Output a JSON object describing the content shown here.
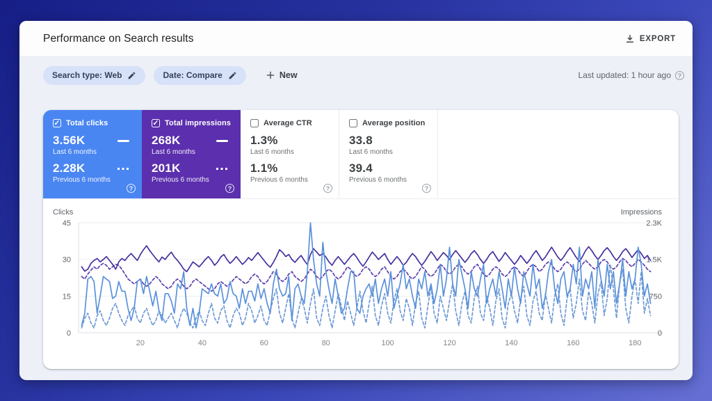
{
  "header": {
    "title": "Performance on Search results",
    "export_label": "EXPORT"
  },
  "filters": {
    "chips": [
      {
        "label": "Search type: Web"
      },
      {
        "label": "Date: Compare"
      }
    ],
    "new_label": "New",
    "last_updated": "Last updated: 1 hour ago"
  },
  "icons": {
    "export": "download-icon",
    "chip_edit": "pencil-icon",
    "new": "plus-icon",
    "help": "question-circle-icon",
    "checkbox_checked": "checkbox-checked-icon",
    "checkbox_unchecked": "checkbox-unchecked-icon"
  },
  "colors": {
    "clicks_accent": "#4a86f2",
    "impressions_accent": "#5b2fad",
    "clicks_line": "#5a91da",
    "clicks_prev_line": "#6e9ad6",
    "impressions_line": "#472f9e",
    "impressions_prev_line": "#5d3fae"
  },
  "metric_cards": [
    {
      "label": "Total clicks",
      "checked": true,
      "bg": "#4a86f2",
      "current": {
        "value": "3.56K",
        "period": "Last 6 months"
      },
      "previous": {
        "value": "2.28K",
        "period": "Previous 6 months"
      }
    },
    {
      "label": "Total impressions",
      "checked": true,
      "bg": "#5b2fad",
      "current": {
        "value": "268K",
        "period": "Last 6 months"
      },
      "previous": {
        "value": "201K",
        "period": "Previous 6 months"
      }
    },
    {
      "label": "Average CTR",
      "checked": false,
      "bg": null,
      "current": {
        "value": "1.3%",
        "period": "Last 6 months"
      },
      "previous": {
        "value": "1.1%",
        "period": "Previous 6 months"
      }
    },
    {
      "label": "Average position",
      "checked": false,
      "bg": null,
      "current": {
        "value": "33.8",
        "period": "Last 6 months"
      },
      "previous": {
        "value": "39.4",
        "period": "Previous 6 months"
      }
    }
  ],
  "chart_data": {
    "type": "line",
    "x": {
      "max": 186,
      "ticks": [
        20,
        40,
        60,
        80,
        100,
        120,
        140,
        160,
        180
      ]
    },
    "left_axis": {
      "label": "Clicks",
      "max": 45,
      "ticks": [
        {
          "v": 0,
          "t": "0"
        },
        {
          "v": 15,
          "t": "15"
        },
        {
          "v": 30,
          "t": "30"
        },
        {
          "v": 45,
          "t": "45"
        }
      ]
    },
    "right_axis": {
      "label": "Impressions",
      "max": 2250,
      "ticks": [
        {
          "v": 0,
          "t": "0"
        },
        {
          "v": 750,
          "t": "750"
        },
        {
          "v": 1500,
          "t": "1.5K"
        },
        {
          "v": 2250,
          "t": "2.3K"
        }
      ]
    },
    "legend_position": "none",
    "grid": true,
    "series": [
      {
        "name": "Clicks - Last 6 months",
        "axis": "left",
        "style": "solid",
        "color": "#5a91da",
        "values": [
          3,
          8,
          22,
          23,
          21,
          8,
          15,
          23,
          22,
          21,
          14,
          15,
          21,
          17,
          17,
          10,
          5,
          10,
          21,
          22,
          16,
          23,
          17,
          11,
          17,
          9,
          5,
          16,
          16,
          13,
          8,
          20,
          18,
          25,
          10,
          3,
          10,
          2,
          8,
          18,
          17,
          16,
          20,
          16,
          15,
          20,
          12,
          14,
          21,
          16,
          15,
          10,
          18,
          12,
          17,
          17,
          13,
          20,
          14,
          18,
          12,
          8,
          20,
          26,
          18,
          15,
          16,
          23,
          5,
          18,
          20,
          15,
          12,
          25,
          45,
          30,
          20,
          15,
          37,
          25,
          18,
          12,
          22,
          15,
          8,
          10,
          18,
          25,
          25,
          10,
          8,
          15,
          18,
          20,
          15,
          22,
          12,
          18,
          22,
          15,
          25,
          10,
          15,
          20,
          28,
          18,
          22,
          15,
          10,
          22,
          18,
          25,
          15,
          20,
          12,
          18,
          28,
          15,
          22,
          35,
          20,
          15,
          30,
          24,
          18,
          10,
          25,
          18,
          15,
          22,
          28,
          12,
          18,
          22,
          15,
          25,
          18,
          10,
          22,
          15,
          27,
          18,
          12,
          25,
          20,
          15,
          28,
          18,
          22,
          10,
          15,
          25,
          30,
          18,
          12,
          22,
          25,
          15,
          18,
          28,
          20,
          35,
          15,
          22,
          18,
          25,
          10,
          30,
          22,
          15,
          28,
          18,
          25,
          12,
          20,
          30,
          15,
          25,
          18,
          22,
          35,
          28,
          15,
          20,
          12
        ]
      },
      {
        "name": "Clicks - Previous 6 months",
        "axis": "left",
        "style": "dashed",
        "color": "#6e9ad6",
        "values": [
          2,
          6,
          8,
          4,
          2,
          7,
          9,
          5,
          3,
          6,
          10,
          12,
          8,
          5,
          3,
          7,
          9,
          11,
          6,
          4,
          8,
          10,
          6,
          3,
          5,
          9,
          7,
          4,
          6,
          8,
          5,
          2,
          7,
          10,
          8,
          4,
          2,
          6,
          9,
          5,
          3,
          8,
          12,
          6,
          4,
          9,
          11,
          5,
          2,
          7,
          10,
          8,
          3,
          6,
          12,
          9,
          4,
          7,
          11,
          5,
          3,
          9,
          14,
          18,
          8,
          4,
          10,
          16,
          6,
          2,
          8,
          14,
          10,
          4,
          12,
          18,
          6,
          3,
          10,
          15,
          7,
          2,
          9,
          16,
          11,
          5,
          13,
          8,
          3,
          10,
          17,
          9,
          4,
          12,
          19,
          7,
          3,
          11,
          16,
          8,
          4,
          13,
          18,
          9,
          5,
          14,
          10,
          3,
          12,
          17,
          6,
          2,
          11,
          19,
          8,
          4,
          15,
          10,
          5,
          13,
          20,
          9,
          3,
          12,
          17,
          7,
          4,
          14,
          19,
          8,
          5,
          15,
          10,
          3,
          13,
          18,
          6,
          2,
          12,
          16,
          9,
          4,
          14,
          19,
          7,
          3,
          13,
          17,
          8,
          5,
          16,
          10,
          4,
          15,
          20,
          8,
          3,
          14,
          18,
          6,
          12,
          22,
          9,
          5,
          17,
          12,
          4,
          16,
          21,
          7,
          14,
          28,
          18,
          6,
          20,
          26,
          10,
          4,
          15,
          22,
          12,
          25,
          8,
          14,
          7
        ]
      },
      {
        "name": "Impressions - Last 6 months",
        "axis": "right",
        "style": "solid",
        "color": "#472f9e",
        "values": [
          1350,
          1260,
          1300,
          1420,
          1480,
          1520,
          1450,
          1500,
          1560,
          1480,
          1400,
          1300,
          1450,
          1520,
          1480,
          1560,
          1620,
          1550,
          1480,
          1600,
          1700,
          1780,
          1680,
          1600,
          1520,
          1450,
          1550,
          1500,
          1580,
          1650,
          1550,
          1480,
          1400,
          1300,
          1250,
          1350,
          1450,
          1400,
          1350,
          1420,
          1500,
          1560,
          1480,
          1380,
          1450,
          1550,
          1600,
          1500,
          1420,
          1480,
          1560,
          1480,
          1400,
          1460,
          1540,
          1480,
          1560,
          1640,
          1560,
          1480,
          1400,
          1340,
          1440,
          1560,
          1700,
          1640,
          1560,
          1600,
          1500,
          1440,
          1520,
          1580,
          1480,
          1400,
          1600,
          1720,
          1650,
          1580,
          1620,
          1550,
          1450,
          1380,
          1480,
          1560,
          1480,
          1400,
          1480,
          1560,
          1620,
          1540,
          1440,
          1360,
          1450,
          1550,
          1650,
          1580,
          1500,
          1560,
          1620,
          1500,
          1400,
          1480,
          1560,
          1480,
          1380,
          1440,
          1540,
          1620,
          1560,
          1460,
          1380,
          1460,
          1560,
          1660,
          1580,
          1480,
          1560,
          1640,
          1580,
          1500,
          1600,
          1680,
          1600,
          1520,
          1440,
          1520,
          1620,
          1680,
          1600,
          1500,
          1420,
          1500,
          1600,
          1660,
          1560,
          1460,
          1540,
          1640,
          1560,
          1480,
          1400,
          1480,
          1580,
          1500,
          1420,
          1500,
          1600,
          1680,
          1580,
          1480,
          1550,
          1650,
          1750,
          1650,
          1550,
          1480,
          1560,
          1660,
          1740,
          1640,
          1540,
          1460,
          1560,
          1680,
          1760,
          1680,
          1580,
          1500,
          1580,
          1680,
          1740,
          1660,
          1560,
          1480,
          1560,
          1660,
          1720,
          1640,
          1540,
          1620,
          1700,
          1620,
          1520,
          1580,
          1480
        ]
      },
      {
        "name": "Impressions - Previous 6 months",
        "axis": "right",
        "style": "dashed",
        "color": "#5d3fae",
        "values": [
          1150,
          1100,
          1200,
          1280,
          1350,
          1300,
          1380,
          1420,
          1380,
          1300,
          1350,
          1400,
          1380,
          1300,
          1200,
          1100,
          1050,
          1000,
          1050,
          1100,
          1000,
          950,
          1000,
          1080,
          1150,
          1100,
          1000,
          950,
          900,
          950,
          1050,
          1100,
          1050,
          950,
          900,
          950,
          1050,
          1100,
          1050,
          1000,
          950,
          900,
          850,
          900,
          1000,
          1050,
          1000,
          950,
          1000,
          1080,
          1150,
          1100,
          1050,
          1000,
          1050,
          1150,
          1200,
          1150,
          1050,
          1000,
          1050,
          1150,
          1250,
          1200,
          1100,
          1050,
          1100,
          1200,
          1250,
          1150,
          1100,
          1050,
          1100,
          1200,
          1300,
          1250,
          1150,
          1100,
          1150,
          1250,
          1300,
          1250,
          1150,
          1100,
          1150,
          1250,
          1350,
          1300,
          1200,
          1150,
          1200,
          1300,
          1350,
          1300,
          1200,
          1150,
          1200,
          1300,
          1350,
          1250,
          1150,
          1100,
          1150,
          1250,
          1300,
          1250,
          1150,
          1100,
          1150,
          1250,
          1350,
          1300,
          1200,
          1150,
          1200,
          1300,
          1400,
          1350,
          1250,
          1200,
          1250,
          1350,
          1400,
          1350,
          1250,
          1200,
          1250,
          1350,
          1400,
          1300,
          1200,
          1150,
          1200,
          1300,
          1350,
          1300,
          1200,
          1150,
          1200,
          1300,
          1350,
          1300,
          1200,
          1150,
          1250,
          1350,
          1400,
          1350,
          1250,
          1300,
          1400,
          1450,
          1400,
          1300,
          1250,
          1300,
          1400,
          1450,
          1400,
          1300,
          1250,
          1300,
          1400,
          1480,
          1420,
          1350,
          1300,
          1350,
          1450,
          1500,
          1450,
          1350,
          1300,
          1350,
          1450,
          1520,
          1480,
          1400,
          1350,
          1420,
          1500,
          1450,
          1380,
          1300,
          1250
        ]
      }
    ]
  }
}
